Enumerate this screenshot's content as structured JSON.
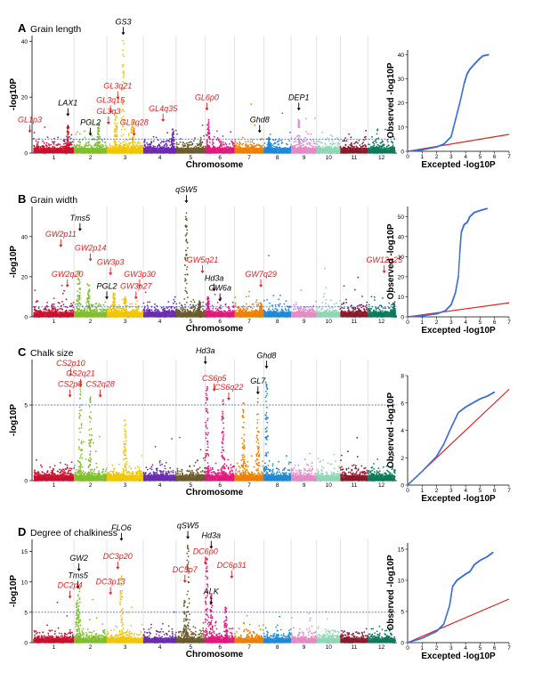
{
  "chart_data": [
    {
      "type": "scatter",
      "panel": "A",
      "title": "Grain length",
      "xlabel": "Chromosome",
      "ylabel": "-log10P",
      "ylim": [
        0,
        42
      ],
      "yticks": [
        0,
        20,
        40
      ],
      "threshold": 5,
      "chromosomes": [
        "1",
        "2",
        "3",
        "4",
        "5",
        "6",
        "7",
        "8",
        "9",
        "10",
        "11",
        "12"
      ],
      "colors": [
        "#c8102e",
        "#7fbf2a",
        "#f2c500",
        "#6a2bb0",
        "#6b5a2a",
        "#e0197d",
        "#f07f00",
        "#1e88d8",
        "#e58ac7",
        "#8fd6b6",
        "#8a1a2a",
        "#0b7a5a"
      ],
      "peaks": [
        {
          "chr": 3,
          "pos": 0.45,
          "y": 41
        },
        {
          "chr": 3,
          "pos": 0.25,
          "y": 16
        },
        {
          "chr": 3,
          "pos": 0.7,
          "y": 12
        },
        {
          "chr": 2,
          "pos": 0.75,
          "y": 11
        },
        {
          "chr": 4,
          "pos": 0.9,
          "y": 9
        },
        {
          "chr": 6,
          "pos": 0.1,
          "y": 12
        },
        {
          "chr": 1,
          "pos": 0.85,
          "y": 10
        },
        {
          "chr": 9,
          "pos": 0.3,
          "y": 12
        },
        {
          "chr": 8,
          "pos": 0.2,
          "y": 6
        }
      ],
      "annotations": [
        {
          "label": "GS3",
          "color": "#000000",
          "chr": 3,
          "pos": 0.45,
          "y": 46
        },
        {
          "label": "LAX1",
          "color": "#000000",
          "chr": 1,
          "pos": 0.85,
          "y": 17
        },
        {
          "label": "GL1p3",
          "color": "#e02020",
          "chr": 1,
          "pos": -0.1,
          "y": 11
        },
        {
          "label": "PGL2",
          "color": "#000000",
          "chr": 2,
          "pos": 0.5,
          "y": 10
        },
        {
          "label": "GL3q3",
          "color": "#e02020",
          "chr": 2,
          "pos": 1.05,
          "y": 14
        },
        {
          "label": "GL3q15",
          "color": "#e02020",
          "chr": 3,
          "pos": 0.1,
          "y": 18
        },
        {
          "label": "GL3q21",
          "color": "#e02020",
          "chr": 3,
          "pos": 0.3,
          "y": 23
        },
        {
          "label": "GL3q28",
          "color": "#e02020",
          "chr": 3,
          "pos": 0.75,
          "y": 10
        },
        {
          "label": "GL4q35",
          "color": "#e02020",
          "chr": 4,
          "pos": 0.6,
          "y": 15
        },
        {
          "label": "GL6p0",
          "color": "#e02020",
          "chr": 6,
          "pos": 0.05,
          "y": 19
        },
        {
          "label": "Ghd8",
          "color": "#000000",
          "chr": 8,
          "pos": -0.15,
          "y": 11
        },
        {
          "label": "DEP1",
          "color": "#000000",
          "chr": 9,
          "pos": 0.3,
          "y": 19
        }
      ]
    },
    {
      "type": "scatter",
      "panel": "B",
      "title": "Grain width",
      "xlabel": "Chromosome",
      "ylabel": "-log10P",
      "ylim": [
        0,
        55
      ],
      "yticks": [
        0,
        20,
        40
      ],
      "threshold": 5,
      "chromosomes": [
        "1",
        "2",
        "3",
        "4",
        "5",
        "6",
        "7",
        "8",
        "9",
        "10",
        "11",
        "12"
      ],
      "colors": [
        "#c8102e",
        "#7fbf2a",
        "#f2c500",
        "#6a2bb0",
        "#6b5a2a",
        "#e0197d",
        "#f07f00",
        "#1e88d8",
        "#e58ac7",
        "#8fd6b6",
        "#8a1a2a",
        "#0b7a5a"
      ],
      "peaks": [
        {
          "chr": 5,
          "pos": 0.35,
          "y": 52
        },
        {
          "chr": 2,
          "pos": 0.15,
          "y": 24
        },
        {
          "chr": 2,
          "pos": 0.45,
          "y": 16
        },
        {
          "chr": 3,
          "pos": 0.2,
          "y": 12
        },
        {
          "chr": 3,
          "pos": 0.5,
          "y": 10
        },
        {
          "chr": 6,
          "pos": 0.1,
          "y": 10
        },
        {
          "chr": 5,
          "pos": 0.8,
          "y": 8
        },
        {
          "chr": 7,
          "pos": 0.9,
          "y": 7
        },
        {
          "chr": 12,
          "pos": 0.95,
          "y": 7
        }
      ],
      "annotations": [
        {
          "label": "qSW5",
          "color": "#000000",
          "chr": 5,
          "pos": 0.35,
          "y": 62
        },
        {
          "label": "Tms5",
          "color": "#000000",
          "chr": 1,
          "pos": 1.15,
          "y": 48
        },
        {
          "label": "GW2p11",
          "color": "#e02020",
          "chr": 2,
          "pos": -0.4,
          "y": 40
        },
        {
          "label": "GW2p14",
          "color": "#e02020",
          "chr": 2,
          "pos": 0.5,
          "y": 33
        },
        {
          "label": "GW3p3",
          "color": "#e02020",
          "chr": 3,
          "pos": 0.1,
          "y": 26
        },
        {
          "label": "GW2q20",
          "color": "#e02020",
          "chr": 2,
          "pos": -0.2,
          "y": 20
        },
        {
          "label": "GW3p30",
          "color": "#e02020",
          "chr": 3,
          "pos": 0.9,
          "y": 20
        },
        {
          "label": "PGL2",
          "color": "#000000",
          "chr": 2,
          "pos": 1.0,
          "y": 14
        },
        {
          "label": "GW3p27",
          "color": "#e02020",
          "chr": 3,
          "pos": 0.8,
          "y": 14
        },
        {
          "label": "GW5q21",
          "color": "#e02020",
          "chr": 5,
          "pos": 0.9,
          "y": 27
        },
        {
          "label": "Hd3a",
          "color": "#000000",
          "chr": 5,
          "pos": 1.3,
          "y": 18
        },
        {
          "label": "GW6a",
          "color": "#000000",
          "chr": 6,
          "pos": 0.5,
          "y": 13
        },
        {
          "label": "GW7q29",
          "color": "#e02020",
          "chr": 7,
          "pos": 0.9,
          "y": 20
        },
        {
          "label": "GW12q25",
          "color": "#e02020",
          "chr": 12,
          "pos": 0.6,
          "y": 27
        }
      ]
    },
    {
      "type": "scatter",
      "panel": "C",
      "title": "Chalk size",
      "xlabel": "Chromosome",
      "ylabel": "-log10P",
      "ylim": [
        0,
        8
      ],
      "yticks": [
        0,
        5
      ],
      "threshold": 5,
      "chromosomes": [
        "1",
        "2",
        "3",
        "4",
        "5",
        "6",
        "7",
        "8",
        "9",
        "10",
        "11",
        "12"
      ],
      "colors": [
        "#c8102e",
        "#7fbf2a",
        "#f2c500",
        "#6a2bb0",
        "#6b5a2a",
        "#e0197d",
        "#f07f00",
        "#1e88d8",
        "#e58ac7",
        "#8fd6b6",
        "#8a1a2a",
        "#0b7a5a"
      ],
      "peaks": [
        {
          "chr": 2,
          "pos": 0.2,
          "y": 6.2
        },
        {
          "chr": 2,
          "pos": 0.5,
          "y": 5.6
        },
        {
          "chr": 6,
          "pos": 0.05,
          "y": 6.4
        },
        {
          "chr": 6,
          "pos": 0.6,
          "y": 5.6
        },
        {
          "chr": 7,
          "pos": 0.8,
          "y": 5.8
        },
        {
          "chr": 8,
          "pos": 0.1,
          "y": 6.8
        },
        {
          "chr": 3,
          "pos": 0.5,
          "y": 4.0
        },
        {
          "chr": 7,
          "pos": 0.3,
          "y": 5.2
        }
      ],
      "annotations": [
        {
          "label": "CS2p10",
          "color": "#e02020",
          "chr": 2,
          "pos": -0.1,
          "y": 7.6
        },
        {
          "label": "CS2q21",
          "color": "#e02020",
          "chr": 2,
          "pos": 0.2,
          "y": 6.9
        },
        {
          "label": "CS2p8",
          "color": "#e02020",
          "chr": 1,
          "pos": 0.9,
          "y": 6.2
        },
        {
          "label": "CS2q28",
          "color": "#e02020",
          "chr": 2,
          "pos": 0.8,
          "y": 6.2
        },
        {
          "label": "Hd3a",
          "color": "#000000",
          "chr": 6,
          "pos": 0.0,
          "y": 8.4
        },
        {
          "label": "CS6p5",
          "color": "#e02020",
          "chr": 6,
          "pos": 0.3,
          "y": 6.6
        },
        {
          "label": "CS6q22",
          "color": "#e02020",
          "chr": 6,
          "pos": 0.8,
          "y": 6.0
        },
        {
          "label": "Ghd8",
          "color": "#000000",
          "chr": 8,
          "pos": 0.1,
          "y": 8.1
        },
        {
          "label": "GL7",
          "color": "#000000",
          "chr": 7,
          "pos": 0.8,
          "y": 6.4
        }
      ]
    },
    {
      "type": "scatter",
      "panel": "D",
      "title": "Degree of chalkiness",
      "xlabel": "Chromosome",
      "ylabel": "-log10P",
      "ylim": [
        0,
        17
      ],
      "yticks": [
        0,
        5,
        10,
        15
      ],
      "threshold": 5,
      "chromosomes": [
        "1",
        "2",
        "3",
        "4",
        "5",
        "6",
        "7",
        "8",
        "9",
        "10",
        "11",
        "12"
      ],
      "colors": [
        "#c8102e",
        "#7fbf2a",
        "#f2c500",
        "#6a2bb0",
        "#6b5a2a",
        "#e0197d",
        "#f07f00",
        "#1e88d8",
        "#e58ac7",
        "#8fd6b6",
        "#8a1a2a",
        "#0b7a5a"
      ],
      "peaks": [
        {
          "chr": 5,
          "pos": 0.4,
          "y": 16
        },
        {
          "chr": 6,
          "pos": 0.05,
          "y": 14
        },
        {
          "chr": 2,
          "pos": 0.15,
          "y": 9
        },
        {
          "chr": 3,
          "pos": 0.4,
          "y": 11
        },
        {
          "chr": 5,
          "pos": 0.3,
          "y": 7
        },
        {
          "chr": 6,
          "pos": 0.2,
          "y": 8
        },
        {
          "chr": 6,
          "pos": 0.7,
          "y": 6
        },
        {
          "chr": 2,
          "pos": 0.1,
          "y": 7
        }
      ],
      "annotations": [
        {
          "label": "FLO6",
          "color": "#000000",
          "chr": 3,
          "pos": 0.4,
          "y": 18.5
        },
        {
          "label": "qSW5",
          "color": "#000000",
          "chr": 5,
          "pos": 0.4,
          "y": 18.8
        },
        {
          "label": "Hd3a",
          "color": "#000000",
          "chr": 6,
          "pos": 0.2,
          "y": 17.2
        },
        {
          "label": "GW2",
          "color": "#000000",
          "chr": 2,
          "pos": 0.15,
          "y": 13.5
        },
        {
          "label": "DC3p20",
          "color": "#e02020",
          "chr": 3,
          "pos": 0.3,
          "y": 13.8
        },
        {
          "label": "DC6p0",
          "color": "#e02020",
          "chr": 6,
          "pos": 0.0,
          "y": 14.6
        },
        {
          "label": "DC6p31",
          "color": "#e02020",
          "chr": 6,
          "pos": 0.9,
          "y": 12.3
        },
        {
          "label": "Tms5",
          "color": "#000000",
          "chr": 1,
          "pos": 1.1,
          "y": 10.6
        },
        {
          "label": "DC2p4",
          "color": "#e02020",
          "chr": 1,
          "pos": 0.9,
          "y": 9.0
        },
        {
          "label": "DC3p13",
          "color": "#e02020",
          "chr": 3,
          "pos": 0.1,
          "y": 9.6
        },
        {
          "label": "DC5p7",
          "color": "#e02020",
          "chr": 5,
          "pos": 0.3,
          "y": 11.6
        },
        {
          "label": "ALK",
          "color": "#000000",
          "chr": 6,
          "pos": 0.2,
          "y": 8.0
        }
      ]
    }
  ],
  "qq_data": [
    {
      "panel": "A",
      "ylabel": "Observed -log10P",
      "xlabel": "Excepted -log10P",
      "xlim": [
        0,
        7
      ],
      "ylim": [
        0,
        42
      ],
      "xticks": [
        0,
        1,
        2,
        3,
        4,
        5,
        6,
        7
      ],
      "yticks": [
        0,
        10,
        20,
        30,
        40
      ],
      "curve": [
        [
          0,
          0
        ],
        [
          1,
          0.6
        ],
        [
          2,
          1.8
        ],
        [
          2.5,
          3
        ],
        [
          3,
          6
        ],
        [
          3.3,
          13
        ],
        [
          3.6,
          20
        ],
        [
          3.9,
          28
        ],
        [
          4.1,
          32
        ],
        [
          4.3,
          34
        ],
        [
          4.6,
          36
        ],
        [
          4.9,
          38
        ],
        [
          5.2,
          39.5
        ],
        [
          5.6,
          40
        ]
      ]
    },
    {
      "panel": "B",
      "ylabel": "Observed -log10P",
      "xlabel": "Excepted -log10P",
      "xlim": [
        0,
        7
      ],
      "ylim": [
        0,
        55
      ],
      "xticks": [
        0,
        1,
        2,
        3,
        4,
        5,
        6,
        7
      ],
      "yticks": [
        0,
        10,
        20,
        30,
        40,
        50
      ],
      "curve": [
        [
          0,
          0
        ],
        [
          1,
          0.5
        ],
        [
          2,
          1.5
        ],
        [
          2.6,
          3
        ],
        [
          3.0,
          6
        ],
        [
          3.3,
          12
        ],
        [
          3.5,
          20
        ],
        [
          3.6,
          32
        ],
        [
          3.7,
          42
        ],
        [
          3.9,
          46
        ],
        [
          4.1,
          47
        ],
        [
          4.3,
          50
        ],
        [
          4.6,
          52
        ],
        [
          5.0,
          53
        ],
        [
          5.5,
          54
        ]
      ]
    },
    {
      "panel": "C",
      "ylabel": "Observed -log10P",
      "xlabel": "Excepted -log10P",
      "xlim": [
        0,
        7
      ],
      "ylim": [
        0,
        8
      ],
      "xticks": [
        0,
        1,
        2,
        3,
        4,
        5,
        6,
        7
      ],
      "yticks": [
        0,
        2,
        4,
        6,
        8
      ],
      "curve": [
        [
          0,
          0
        ],
        [
          1,
          1
        ],
        [
          2,
          2.1
        ],
        [
          2.5,
          3
        ],
        [
          3,
          4.2
        ],
        [
          3.5,
          5.3
        ],
        [
          4,
          5.7
        ],
        [
          4.5,
          6.0
        ],
        [
          5,
          6.3
        ],
        [
          5.5,
          6.5
        ],
        [
          6,
          6.8
        ]
      ]
    },
    {
      "panel": "D",
      "ylabel": "Observed -log10P",
      "xlabel": "Excepted -log10P",
      "xlim": [
        0,
        7
      ],
      "ylim": [
        0,
        16
      ],
      "xticks": [
        0,
        1,
        2,
        3,
        4,
        5,
        6,
        7
      ],
      "yticks": [
        0,
        5,
        10,
        15
      ],
      "curve": [
        [
          0,
          0
        ],
        [
          1,
          0.7
        ],
        [
          2,
          1.8
        ],
        [
          2.5,
          3
        ],
        [
          2.9,
          6
        ],
        [
          3.1,
          9
        ],
        [
          3.4,
          10
        ],
        [
          3.7,
          10.5
        ],
        [
          4,
          11
        ],
        [
          4.3,
          11.4
        ],
        [
          4.6,
          12.5
        ],
        [
          5,
          13.2
        ],
        [
          5.5,
          13.8
        ],
        [
          5.9,
          14.5
        ]
      ]
    }
  ]
}
